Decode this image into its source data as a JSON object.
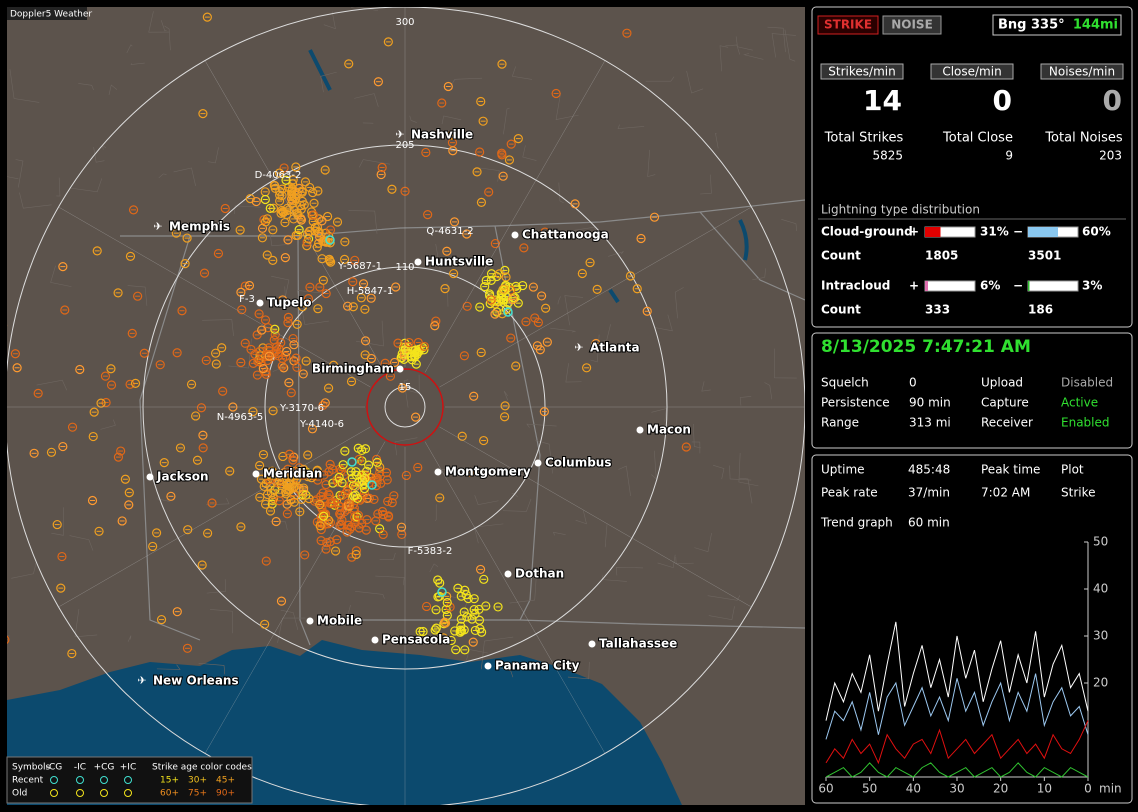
{
  "map": {
    "title": "Doppler5 Weather",
    "range_rings": [
      "300",
      "205",
      "110",
      "15"
    ],
    "cities": [
      "Nashville",
      "Memphis",
      "Chattanooga",
      "Huntsville",
      "Tupelo",
      "Atlanta",
      "Birmingham",
      "Macon",
      "Jackson",
      "Meridian",
      "Montgomery",
      "Columbus",
      "Dothan",
      "Mobile",
      "Pensacola",
      "Tallahassee",
      "Panama City",
      "New Orleans"
    ],
    "storm_tracks": [
      "D-4063-2",
      "Q-4631-2",
      "Y-5687-1",
      "H-5847-1",
      "F-3",
      "N-4963-5",
      "Y-3170-6",
      "Y-4140-6",
      "F-5383-2"
    ],
    "legend": {
      "symbols_label": "Symbols",
      "symbol_types": [
        "-CG",
        "-IC",
        "+CG",
        "+IC"
      ],
      "age_label": "Strike age color codes",
      "rows": [
        "Recent",
        "Old"
      ],
      "recent_ages": [
        "15+",
        "30+",
        "45+"
      ],
      "old_ages": [
        "60+",
        "75+",
        "90+"
      ]
    }
  },
  "panel": {
    "mode_buttons": [
      "STRIKE",
      "NOISE"
    ],
    "bearing": "Bng 335°",
    "distance": "144mi",
    "rates": [
      {
        "label": "Strikes/min",
        "value": 14
      },
      {
        "label": "Close/min",
        "value": 0
      },
      {
        "label": "Noises/min",
        "value": 0
      }
    ],
    "totals": [
      {
        "label": "Total Strikes",
        "value": 5825
      },
      {
        "label": "Total Close",
        "value": 9
      },
      {
        "label": "Total Noises",
        "value": 203
      }
    ],
    "distribution": {
      "title": "Lightning type distribution",
      "count_label": "Count",
      "types": [
        {
          "name": "Cloud-ground",
          "positive": {
            "sign": "+",
            "value": 31,
            "label": "31%",
            "count": 1805
          },
          "negative": {
            "sign": "−",
            "value": 60,
            "label": "60%",
            "count": 3501
          }
        },
        {
          "name": "Intracloud",
          "positive": {
            "sign": "+",
            "value": 6,
            "label": "6%",
            "count": 333
          },
          "negative": {
            "sign": "−",
            "value": 3,
            "label": "3%",
            "count": 186
          }
        }
      ]
    },
    "datetime": "8/13/2025 7:47:21 AM",
    "settings": [
      {
        "label": "Squelch",
        "value": 0,
        "label2": "Upload",
        "value2": "Disabled"
      },
      {
        "label": "Persistence",
        "value": "90 min",
        "label2": "Capture",
        "value2": "Active"
      },
      {
        "label": "Range",
        "value": "313 mi",
        "label2": "Receiver",
        "value2": "Enabled"
      }
    ],
    "status": [
      {
        "label": "Uptime",
        "value": "485:48"
      },
      {
        "label": "Peak rate",
        "value": "37/min"
      },
      {
        "label": "Peak time",
        "value": "7:02 AM"
      },
      {
        "label": "Plot",
        "value": "Strike"
      },
      {
        "label": "Trend graph",
        "value": "60 min"
      }
    ]
  },
  "chart_data": {
    "type": "line",
    "x": [
      60,
      58,
      56,
      54,
      52,
      50,
      48,
      46,
      44,
      42,
      40,
      38,
      36,
      34,
      32,
      30,
      28,
      26,
      24,
      22,
      20,
      18,
      16,
      14,
      12,
      10,
      8,
      6,
      4,
      2,
      0
    ],
    "xlim": [
      60,
      0
    ],
    "xticks": [
      60,
      50,
      40,
      30,
      20,
      10,
      0
    ],
    "x_label": "min",
    "ylim": [
      0,
      50
    ],
    "yticks": [
      20,
      30,
      40,
      50
    ],
    "series": [
      {
        "color": "#ffffff",
        "values": [
          12,
          20,
          16,
          22,
          18,
          26,
          14,
          24,
          33,
          15,
          22,
          28,
          19,
          25,
          17,
          30,
          21,
          27,
          16,
          23,
          29,
          18,
          26,
          20,
          31,
          17,
          24,
          28,
          19,
          22,
          14
        ]
      },
      {
        "color": "#9cc8f0",
        "values": [
          8,
          14,
          12,
          16,
          10,
          18,
          9,
          17,
          20,
          11,
          15,
          19,
          13,
          17,
          12,
          21,
          14,
          18,
          11,
          16,
          20,
          12,
          18,
          14,
          22,
          11,
          16,
          19,
          13,
          15,
          9
        ]
      },
      {
        "color": "#e01010",
        "values": [
          3,
          6,
          4,
          8,
          5,
          7,
          3,
          9,
          6,
          4,
          7,
          8,
          5,
          10,
          4,
          6,
          8,
          5,
          7,
          9,
          4,
          6,
          8,
          5,
          7,
          4,
          9,
          6,
          5,
          8,
          12
        ]
      },
      {
        "color": "#30c030",
        "values": [
          0,
          1,
          2,
          0,
          1,
          3,
          1,
          0,
          2,
          1,
          0,
          2,
          3,
          1,
          0,
          1,
          2,
          0,
          1,
          2,
          0,
          1,
          3,
          1,
          0,
          2,
          1,
          0,
          2,
          1,
          0
        ]
      }
    ]
  }
}
